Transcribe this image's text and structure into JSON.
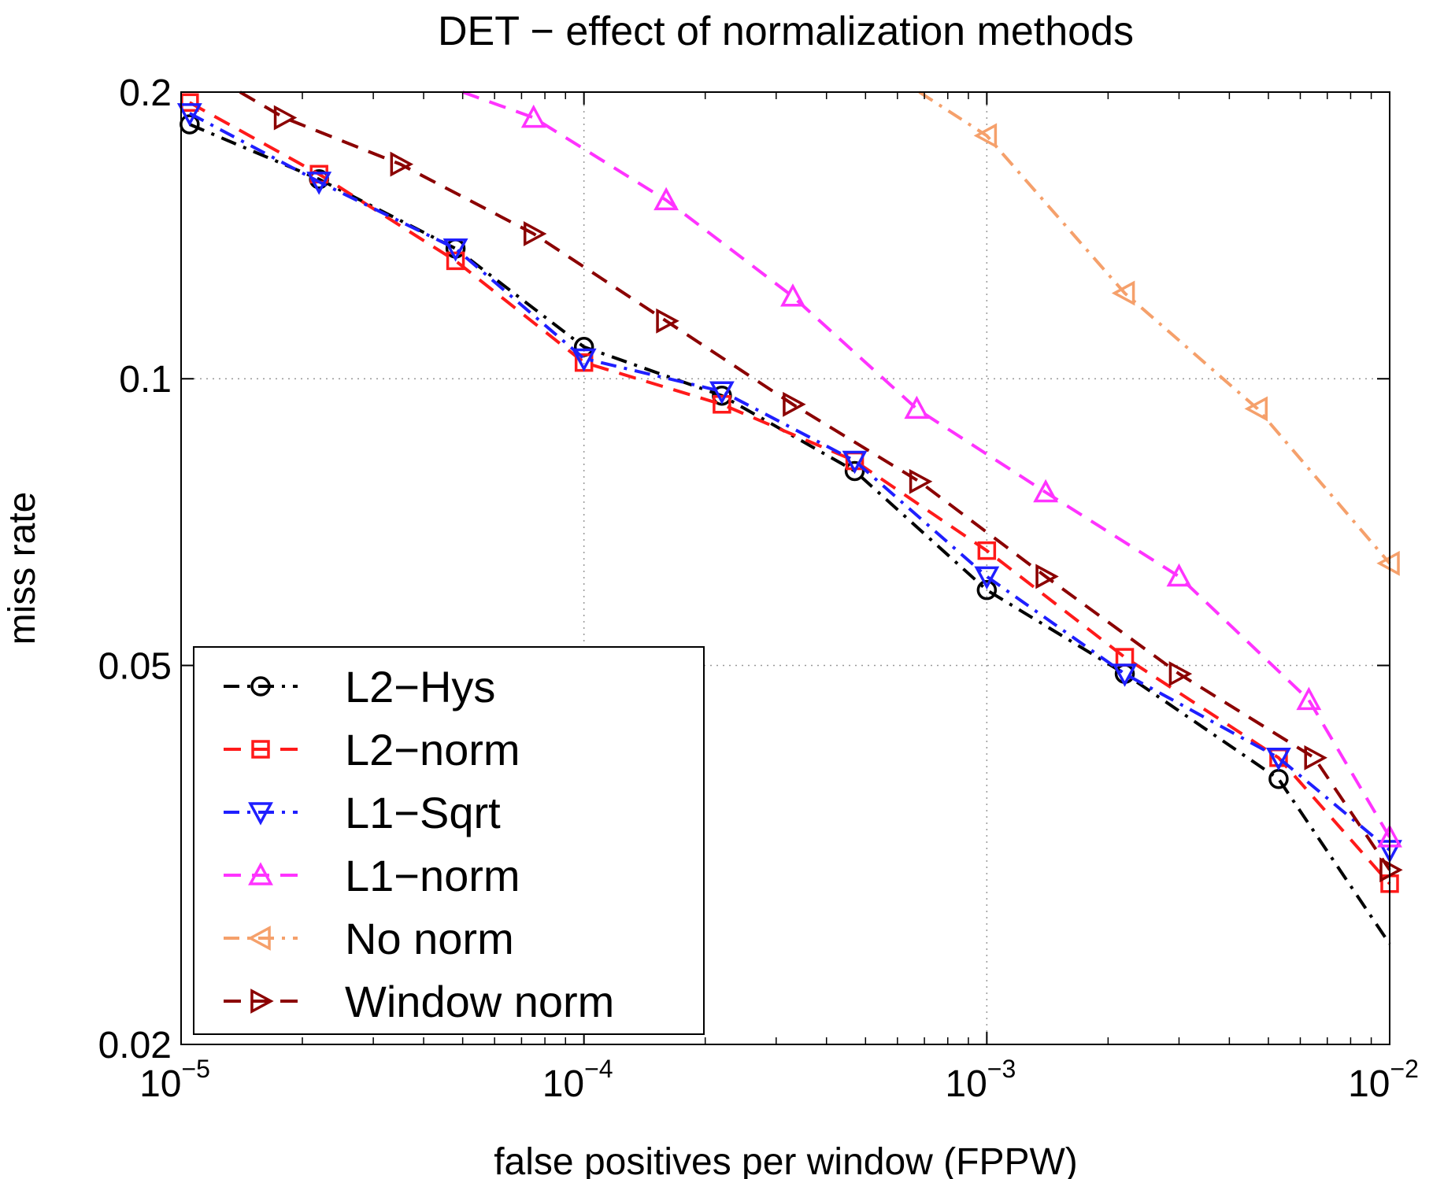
{
  "chart_data": {
    "type": "line",
    "title": "DET − effect of normalization methods",
    "xlabel": "false positives per window (FPPW)",
    "ylabel": "miss rate",
    "xscale": "log",
    "yscale": "log",
    "xlim": [
      1e-05,
      0.01
    ],
    "ylim": [
      0.02,
      0.2
    ],
    "grid": true,
    "legend_position": "bottom-left",
    "x_ticks": [
      {
        "base": "10",
        "exp": "−5"
      },
      {
        "base": "10",
        "exp": "−4"
      },
      {
        "base": "10",
        "exp": "−3"
      },
      {
        "base": "10",
        "exp": "−2"
      }
    ],
    "y_ticks": [
      "0.02",
      "0.05",
      "0.1",
      "0.2"
    ],
    "series": [
      {
        "name": "L2−Hys",
        "color": "#000000",
        "marker": "circle",
        "dash": "dashdot",
        "x": [
          1.05e-05,
          2.2e-05,
          4.8e-05,
          0.0001,
          0.00022,
          0.00047,
          0.001,
          0.0022,
          0.0053,
          0.01
        ],
        "y": [
          0.185,
          0.162,
          0.137,
          0.108,
          0.096,
          0.08,
          0.06,
          0.049,
          0.038,
          0.0255
        ],
        "marker_count": 9
      },
      {
        "name": "L2−norm",
        "color": "#ff1a1a",
        "marker": "square",
        "dash": "dashed",
        "x": [
          1.05e-05,
          2.2e-05,
          4.8e-05,
          0.0001,
          0.00022,
          0.00047,
          0.001,
          0.0022,
          0.0053,
          0.01
        ],
        "y": [
          0.195,
          0.164,
          0.133,
          0.104,
          0.094,
          0.082,
          0.066,
          0.051,
          0.04,
          0.0295
        ],
        "marker_count": 10
      },
      {
        "name": "L1−Sqrt",
        "color": "#1f1fff",
        "marker": "triangle-down",
        "dash": "dashdot",
        "x": [
          1.05e-05,
          2.2e-05,
          4.8e-05,
          0.0001,
          0.00022,
          0.00047,
          0.001,
          0.0022,
          0.0053,
          0.01
        ],
        "y": [
          0.19,
          0.161,
          0.137,
          0.105,
          0.097,
          0.082,
          0.062,
          0.049,
          0.04,
          0.032
        ],
        "marker_count": 10
      },
      {
        "name": "L1−norm",
        "color": "#ff33ff",
        "marker": "triangle-up",
        "dash": "dashed",
        "x": [
          5e-05,
          7.5e-05,
          0.00016,
          0.00033,
          0.00067,
          0.0014,
          0.003,
          0.0063,
          0.01
        ],
        "y": [
          0.2,
          0.188,
          0.154,
          0.122,
          0.093,
          0.076,
          0.062,
          0.046,
          0.033
        ],
        "marker_count": 8
      },
      {
        "name": "No norm",
        "color": "#f5a06b",
        "marker": "triangle-left",
        "dash": "dashdot",
        "x": [
          0.00068,
          0.001,
          0.0022,
          0.0047,
          0.01
        ],
        "y": [
          0.2,
          0.18,
          0.123,
          0.093,
          0.064
        ],
        "marker_count": 4
      },
      {
        "name": "Window norm",
        "color": "#8b0000",
        "marker": "triangle-right",
        "dash": "dashed",
        "x": [
          1.4e-05,
          1.8e-05,
          3.5e-05,
          7.5e-05,
          0.00016,
          0.00033,
          0.00068,
          0.0014,
          0.003,
          0.0065,
          0.01
        ],
        "y": [
          0.2,
          0.188,
          0.168,
          0.142,
          0.115,
          0.094,
          0.078,
          0.062,
          0.049,
          0.04,
          0.0305
        ],
        "marker_count": 10
      }
    ]
  }
}
